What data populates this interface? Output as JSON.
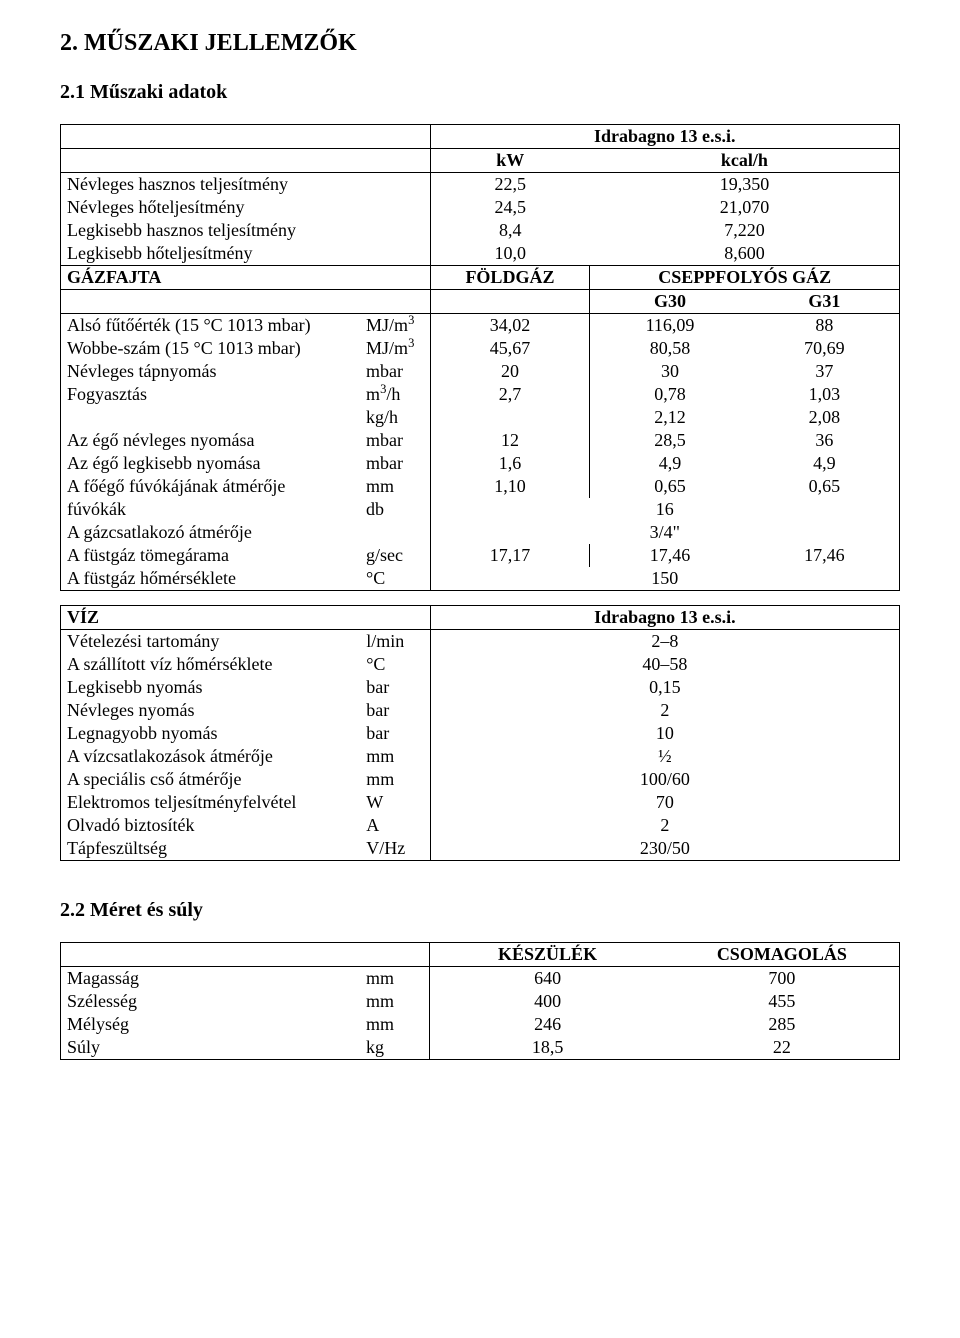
{
  "headings": {
    "h1": "2. MŰSZAKI JELLEMZŐK",
    "h2_1": "2.1 Műszaki adatok",
    "h2_2": "2.2 Méret és súly"
  },
  "gasTable": {
    "titleHeader": "Idrabagno 13 e.s.i.",
    "units": {
      "kW": "kW",
      "kcal": "kcal/h"
    },
    "rows": {
      "r1": {
        "label": "Névleges hasznos teljesítmény",
        "kW": "22,5",
        "kcal": "19,350"
      },
      "r2": {
        "label": "Névleges hőteljesítmény",
        "kW": "24,5",
        "kcal": "21,070"
      },
      "r3": {
        "label": "Legkisebb hasznos teljesítmény",
        "kW": "8,4",
        "kcal": "7,220"
      },
      "r4": {
        "label": "Legkisebb hőteljesítmény",
        "kW": "10,0",
        "kcal": "8,600"
      }
    },
    "gasType": {
      "label": "GÁZFAJTA",
      "col1": "FÖLDGÁZ",
      "col23": "CSEPPFOLYÓS GÁZ",
      "g30": "G30",
      "g31": "G31"
    },
    "data": {
      "d1": {
        "label": "Alsó fűtőérték (15 °C 1013 mbar)",
        "unit_html": "MJ/m<sup>3</sup>",
        "c1": "34,02",
        "c2": "116,09",
        "c3": "88"
      },
      "d2": {
        "label": "Wobbe-szám (15 °C 1013 mbar)",
        "unit_html": "MJ/m<sup>3</sup>",
        "c1": "45,67",
        "c2": "80,58",
        "c3": "70,69"
      },
      "d3": {
        "label": "Névleges tápnyomás",
        "unit": "mbar",
        "c1": "20",
        "c2": "30",
        "c3": "37"
      },
      "d4a": {
        "label": "Fogyasztás",
        "unit_html": "m<sup>3</sup>/h",
        "c1": "2,7",
        "c2": "0,78",
        "c3": "1,03"
      },
      "d4b": {
        "label": "",
        "unit": "kg/h",
        "c1": "",
        "c2": "2,12",
        "c3": "2,08"
      },
      "d5": {
        "label": "Az égő névleges nyomása",
        "unit": "mbar",
        "c1": "12",
        "c2": "28,5",
        "c3": "36"
      },
      "d6": {
        "label": "Az égő legkisebb nyomása",
        "unit": "mbar",
        "c1": "1,6",
        "c2": "4,9",
        "c3": "4,9"
      },
      "d7": {
        "label": "A főégő fúvókájának átmérője",
        "unit": "mm",
        "c1": "1,10",
        "c2": "0,65",
        "c3": "0,65"
      },
      "d8": {
        "label": "fúvókák",
        "unit": "db",
        "cAll": "16"
      },
      "d9": {
        "label": "A gázcsatlakozó átmérője",
        "unit": "",
        "cAll": "3/4\""
      },
      "d10": {
        "label": "A füstgáz tömegárama",
        "unit": "g/sec",
        "c1": "17,17",
        "c2": "17,46",
        "c3": "17,46"
      },
      "d11": {
        "label": "A füstgáz hőmérséklete",
        "unit": "°C",
        "cAll": "150"
      }
    }
  },
  "waterTable": {
    "header": {
      "label": "VÍZ",
      "title": "Idrabagno 13 e.s.i."
    },
    "rows": {
      "w1": {
        "label": "Vételezési tartomány",
        "unit": "l/min",
        "val": "2–8"
      },
      "w2": {
        "label": "A szállított víz hőmérséklete",
        "unit": "°C",
        "val": "40–58"
      },
      "w3": {
        "label": "Legkisebb nyomás",
        "unit": "bar",
        "val": "0,15"
      },
      "w4": {
        "label": "Névleges nyomás",
        "unit": "bar",
        "val": "2"
      },
      "w5": {
        "label": "Legnagyobb nyomás",
        "unit": "bar",
        "val": "10"
      },
      "w6": {
        "label": "A vízcsatlakozások átmérője",
        "unit": "mm",
        "val": "½"
      },
      "w7": {
        "label": "A speciális cső átmérője",
        "unit": "mm",
        "val": "100/60"
      },
      "w8": {
        "label": "Elektromos teljesítményfelvétel",
        "unit": "W",
        "val": "70"
      },
      "w9": {
        "label": "Olvadó biztosíték",
        "unit": "A",
        "val": "2"
      },
      "w10": {
        "label": "Tápfeszültség",
        "unit": "V/Hz",
        "val": "230/50"
      }
    }
  },
  "sizeTable": {
    "header": {
      "col1": "KÉSZÜLÉK",
      "col2": "CSOMAGOLÁS"
    },
    "rows": {
      "s1": {
        "label": "Magasság",
        "unit": "mm",
        "c1": "640",
        "c2": "700"
      },
      "s2": {
        "label": "Szélesség",
        "unit": "mm",
        "c1": "400",
        "c2": "455"
      },
      "s3": {
        "label": "Mélység",
        "unit": "mm",
        "c1": "246",
        "c2": "285"
      },
      "s4": {
        "label": "Súly",
        "unit": "kg",
        "c1": "18,5",
        "c2": "22"
      }
    }
  }
}
